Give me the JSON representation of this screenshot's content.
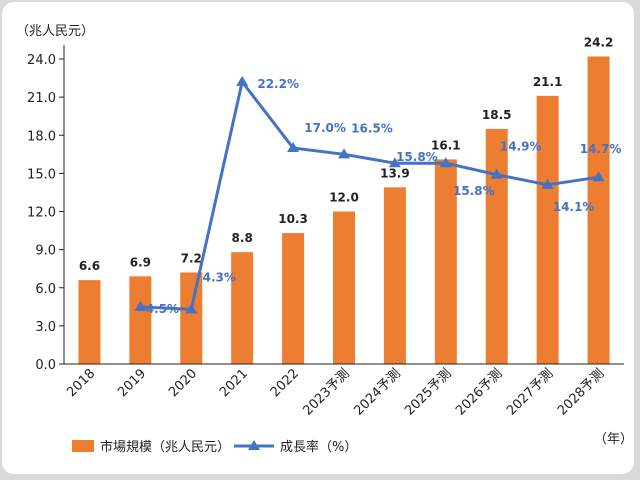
{
  "chart_data": {
    "type": "bar",
    "categories": [
      "2018",
      "2019",
      "2020",
      "2021",
      "2022",
      "2023予測",
      "2024予測",
      "2025予測",
      "2026予測",
      "2027予測",
      "2028予測"
    ],
    "series": [
      {
        "name": "市場規模（兆人民元）",
        "kind": "bar",
        "axis": "left",
        "values": [
          6.6,
          6.9,
          7.2,
          8.8,
          10.3,
          12.0,
          13.9,
          16.1,
          18.5,
          21.1,
          24.2
        ],
        "labels": [
          "6.6",
          "6.9",
          "7.2",
          "8.8",
          "10.3",
          "12.0",
          "13.9",
          "16.1",
          "18.5",
          "21.1",
          "24.2"
        ]
      },
      {
        "name": "成長率（%）",
        "kind": "line",
        "axis": "right",
        "values": [
          null,
          4.5,
          4.3,
          22.2,
          17.0,
          16.5,
          15.8,
          15.8,
          14.9,
          14.1,
          14.7
        ],
        "labels": [
          "",
          "4.5%",
          "4.3%",
          "22.2%",
          "17.0%",
          "16.5%",
          "15.8%",
          "15.8%",
          "14.9%",
          "14.1%",
          "14.7%"
        ]
      }
    ],
    "ylabel": "（兆人民元）",
    "xlabel": "（年）",
    "ylim": [
      0,
      24
    ],
    "yticks": [
      "0.0",
      "3.0",
      "6.0",
      "9.0",
      "12.0",
      "15.0",
      "18.0",
      "21.0",
      "24.0"
    ],
    "line_scale_ylim": [
      0,
      24
    ],
    "grid": false,
    "legend_position": "bottom-left",
    "colors": {
      "bar": "#ed7d31",
      "line": "#4472c4"
    }
  }
}
